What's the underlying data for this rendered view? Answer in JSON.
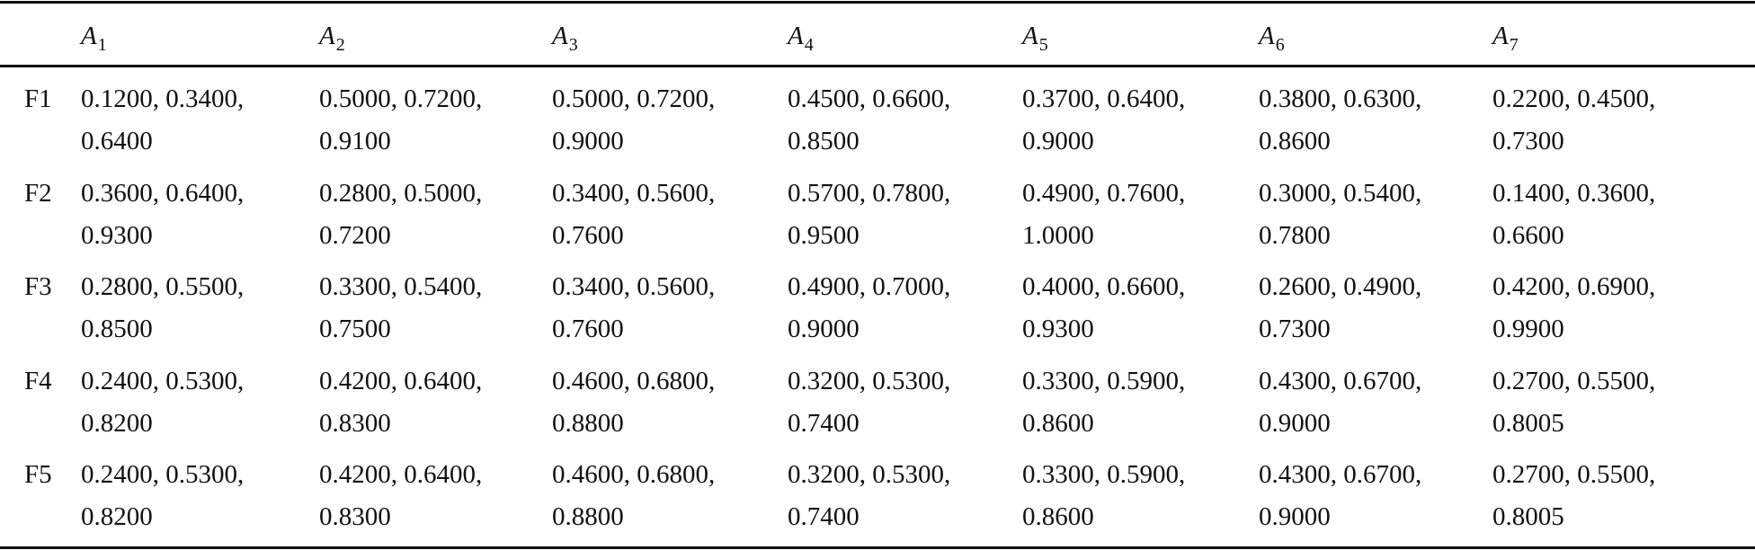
{
  "table": {
    "header": [
      {
        "letter": "A",
        "sub": "1"
      },
      {
        "letter": "A",
        "sub": "2"
      },
      {
        "letter": "A",
        "sub": "3"
      },
      {
        "letter": "A",
        "sub": "4"
      },
      {
        "letter": "A",
        "sub": "5"
      },
      {
        "letter": "A",
        "sub": "6"
      },
      {
        "letter": "A",
        "sub": "7"
      }
    ],
    "rows": [
      {
        "label": "F1",
        "cells": [
          [
            "0.1200, 0.3400,",
            "0.6400"
          ],
          [
            "0.5000, 0.7200,",
            "0.9100"
          ],
          [
            "0.5000, 0.7200,",
            "0.9000"
          ],
          [
            "0.4500, 0.6600,",
            "0.8500"
          ],
          [
            "0.3700, 0.6400,",
            "0.9000"
          ],
          [
            "0.3800, 0.6300,",
            "0.8600"
          ],
          [
            "0.2200, 0.4500,",
            "0.7300"
          ]
        ]
      },
      {
        "label": "F2",
        "cells": [
          [
            "0.3600, 0.6400,",
            "0.9300"
          ],
          [
            "0.2800, 0.5000,",
            "0.7200"
          ],
          [
            "0.3400, 0.5600,",
            "0.7600"
          ],
          [
            "0.5700, 0.7800,",
            "0.9500"
          ],
          [
            "0.4900, 0.7600,",
            "1.0000"
          ],
          [
            "0.3000, 0.5400,",
            "0.7800"
          ],
          [
            "0.1400, 0.3600,",
            "0.6600"
          ]
        ]
      },
      {
        "label": "F3",
        "cells": [
          [
            "0.2800, 0.5500,",
            "0.8500"
          ],
          [
            "0.3300, 0.5400,",
            "0.7500"
          ],
          [
            "0.3400, 0.5600,",
            "0.7600"
          ],
          [
            "0.4900, 0.7000,",
            "0.9000"
          ],
          [
            "0.4000, 0.6600,",
            "0.9300"
          ],
          [
            "0.2600, 0.4900,",
            "0.7300"
          ],
          [
            "0.4200, 0.6900,",
            "0.9900"
          ]
        ]
      },
      {
        "label": "F4",
        "cells": [
          [
            "0.2400, 0.5300,",
            "0.8200"
          ],
          [
            "0.4200, 0.6400,",
            "0.8300"
          ],
          [
            "0.4600, 0.6800,",
            "0.8800"
          ],
          [
            "0.3200, 0.5300,",
            "0.7400"
          ],
          [
            "0.3300, 0.5900,",
            "0.8600"
          ],
          [
            "0.4300, 0.6700,",
            "0.9000"
          ],
          [
            "0.2700, 0.5500,",
            "0.8005"
          ]
        ]
      },
      {
        "label": "F5",
        "cells": [
          [
            "0.2400, 0.5300,",
            "0.8200"
          ],
          [
            "0.4200, 0.6400,",
            "0.8300"
          ],
          [
            "0.4600, 0.6800,",
            "0.8800"
          ],
          [
            "0.3200, 0.5300,",
            "0.7400"
          ],
          [
            "0.3300, 0.5900,",
            "0.8600"
          ],
          [
            "0.4300, 0.6700,",
            "0.9000"
          ],
          [
            "0.2700, 0.5500,",
            "0.8005"
          ]
        ]
      }
    ]
  }
}
